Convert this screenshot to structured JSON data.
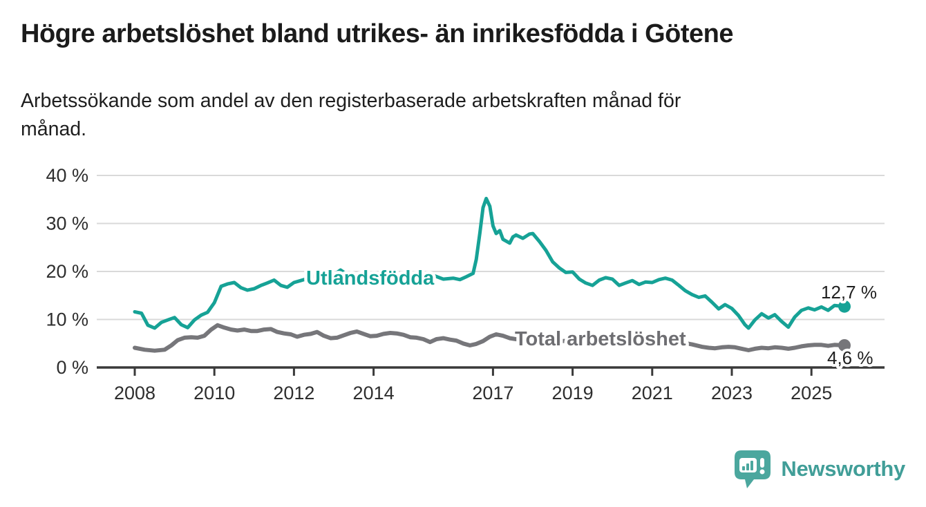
{
  "title": "Högre arbetslöshet bland utrikes- än inrikesfödda i Götene",
  "subtitle_line1": "Arbetssökande som andel av den registerbaserade arbetskraften månad för",
  "subtitle_line2": "månad.",
  "branding": {
    "logo_text": "Newsworthy",
    "logo_icon": "speech-bubble-bar-chart-icon",
    "logo_color": "#4ba79e"
  },
  "chart_data": {
    "type": "line",
    "title": "Högre arbetslöshet bland utrikes- än inrikesfödda i Götene",
    "subtitle": "Arbetssökande som andel av den registerbaserade arbetskraften månad för månad.",
    "unit": "%",
    "grid": true,
    "legend_position": "inline-labels",
    "x_axis": {
      "ticks": [
        2008,
        2010,
        2012,
        2014,
        2017,
        2019,
        2021,
        2023,
        2025
      ],
      "tick_labels": [
        "2008",
        "2010",
        "2012",
        "2014",
        "2017",
        "2019",
        "2021",
        "2023",
        "2025"
      ],
      "range": [
        2007.8,
        2026.3
      ]
    },
    "y_axis": {
      "ticks": [
        0,
        10,
        20,
        30,
        40
      ],
      "tick_labels": [
        "0 %",
        "10 %",
        "20 %",
        "30 %",
        "40 %"
      ],
      "range": [
        0,
        42
      ]
    },
    "series": [
      {
        "name": "Utlandsfödda",
        "color": "#16a296",
        "end_label": "12,7 %",
        "end_value": 12.7,
        "points": [
          [
            2008.0,
            11.6
          ],
          [
            2008.17,
            11.3
          ],
          [
            2008.33,
            8.8
          ],
          [
            2008.5,
            8.2
          ],
          [
            2008.67,
            9.4
          ],
          [
            2008.83,
            9.9
          ],
          [
            2009.0,
            10.4
          ],
          [
            2009.17,
            8.9
          ],
          [
            2009.33,
            8.3
          ],
          [
            2009.5,
            9.9
          ],
          [
            2009.67,
            10.9
          ],
          [
            2009.83,
            11.5
          ],
          [
            2010.0,
            13.5
          ],
          [
            2010.17,
            16.9
          ],
          [
            2010.33,
            17.4
          ],
          [
            2010.5,
            17.7
          ],
          [
            2010.67,
            16.6
          ],
          [
            2010.83,
            16.1
          ],
          [
            2011.0,
            16.4
          ],
          [
            2011.17,
            17.1
          ],
          [
            2011.33,
            17.6
          ],
          [
            2011.5,
            18.2
          ],
          [
            2011.67,
            17.1
          ],
          [
            2011.83,
            16.7
          ],
          [
            2012.0,
            17.7
          ],
          [
            2012.17,
            18.1
          ],
          [
            2012.33,
            18.5
          ],
          [
            2012.5,
            19.0
          ],
          [
            2012.67,
            19.3
          ],
          [
            2012.83,
            18.8
          ],
          [
            2013.0,
            19.3
          ],
          [
            2013.17,
            20.3
          ],
          [
            2013.33,
            19.4
          ],
          [
            2013.5,
            18.9
          ],
          [
            2013.67,
            18.7
          ],
          [
            2013.83,
            19.0
          ],
          [
            2014.0,
            19.2
          ],
          [
            2014.25,
            18.6
          ],
          [
            2014.5,
            19.1
          ],
          [
            2014.75,
            18.5
          ],
          [
            2015.0,
            19.5
          ],
          [
            2015.25,
            18.8
          ],
          [
            2015.5,
            19.2
          ],
          [
            2015.75,
            18.4
          ],
          [
            2016.0,
            18.6
          ],
          [
            2016.17,
            18.3
          ],
          [
            2016.33,
            18.9
          ],
          [
            2016.5,
            19.6
          ],
          [
            2016.58,
            22.5
          ],
          [
            2016.67,
            28.0
          ],
          [
            2016.75,
            33.3
          ],
          [
            2016.83,
            35.2
          ],
          [
            2016.92,
            33.6
          ],
          [
            2017.0,
            29.5
          ],
          [
            2017.08,
            27.9
          ],
          [
            2017.17,
            28.5
          ],
          [
            2017.25,
            26.7
          ],
          [
            2017.42,
            25.9
          ],
          [
            2017.5,
            27.2
          ],
          [
            2017.58,
            27.6
          ],
          [
            2017.75,
            26.9
          ],
          [
            2017.92,
            27.8
          ],
          [
            2018.0,
            27.9
          ],
          [
            2018.17,
            26.2
          ],
          [
            2018.33,
            24.4
          ],
          [
            2018.5,
            22.0
          ],
          [
            2018.67,
            20.7
          ],
          [
            2018.83,
            19.8
          ],
          [
            2019.0,
            19.9
          ],
          [
            2019.17,
            18.4
          ],
          [
            2019.33,
            17.6
          ],
          [
            2019.5,
            17.1
          ],
          [
            2019.67,
            18.2
          ],
          [
            2019.83,
            18.7
          ],
          [
            2020.0,
            18.4
          ],
          [
            2020.17,
            17.1
          ],
          [
            2020.33,
            17.6
          ],
          [
            2020.5,
            18.1
          ],
          [
            2020.67,
            17.3
          ],
          [
            2020.83,
            17.8
          ],
          [
            2021.0,
            17.7
          ],
          [
            2021.17,
            18.3
          ],
          [
            2021.33,
            18.6
          ],
          [
            2021.5,
            18.2
          ],
          [
            2021.67,
            17.1
          ],
          [
            2021.83,
            16.0
          ],
          [
            2022.0,
            15.2
          ],
          [
            2022.17,
            14.6
          ],
          [
            2022.33,
            14.9
          ],
          [
            2022.5,
            13.6
          ],
          [
            2022.67,
            12.2
          ],
          [
            2022.83,
            13.1
          ],
          [
            2023.0,
            12.3
          ],
          [
            2023.17,
            10.8
          ],
          [
            2023.33,
            8.9
          ],
          [
            2023.42,
            8.2
          ],
          [
            2023.58,
            9.9
          ],
          [
            2023.75,
            11.2
          ],
          [
            2023.92,
            10.3
          ],
          [
            2024.08,
            11.0
          ],
          [
            2024.25,
            9.6
          ],
          [
            2024.42,
            8.4
          ],
          [
            2024.58,
            10.5
          ],
          [
            2024.75,
            11.9
          ],
          [
            2024.92,
            12.4
          ],
          [
            2025.08,
            12.0
          ],
          [
            2025.25,
            12.6
          ],
          [
            2025.42,
            11.9
          ],
          [
            2025.58,
            12.9
          ],
          [
            2025.83,
            12.7
          ]
        ]
      },
      {
        "name": "Total arbetslöshet",
        "color": "#76767a",
        "end_label": "4,6 %",
        "end_value": 4.6,
        "points": [
          [
            2008.0,
            4.1
          ],
          [
            2008.25,
            3.7
          ],
          [
            2008.5,
            3.5
          ],
          [
            2008.75,
            3.7
          ],
          [
            2008.92,
            4.6
          ],
          [
            2009.08,
            5.7
          ],
          [
            2009.25,
            6.2
          ],
          [
            2009.42,
            6.3
          ],
          [
            2009.58,
            6.2
          ],
          [
            2009.75,
            6.6
          ],
          [
            2009.92,
            7.9
          ],
          [
            2010.08,
            8.8
          ],
          [
            2010.25,
            8.3
          ],
          [
            2010.42,
            7.9
          ],
          [
            2010.58,
            7.7
          ],
          [
            2010.75,
            7.9
          ],
          [
            2010.92,
            7.6
          ],
          [
            2011.08,
            7.6
          ],
          [
            2011.25,
            7.9
          ],
          [
            2011.42,
            8.0
          ],
          [
            2011.58,
            7.4
          ],
          [
            2011.75,
            7.1
          ],
          [
            2011.92,
            6.9
          ],
          [
            2012.08,
            6.4
          ],
          [
            2012.25,
            6.8
          ],
          [
            2012.42,
            7.0
          ],
          [
            2012.58,
            7.4
          ],
          [
            2012.75,
            6.6
          ],
          [
            2012.92,
            6.1
          ],
          [
            2013.08,
            6.2
          ],
          [
            2013.25,
            6.7
          ],
          [
            2013.42,
            7.2
          ],
          [
            2013.58,
            7.5
          ],
          [
            2013.75,
            7.0
          ],
          [
            2013.92,
            6.5
          ],
          [
            2014.08,
            6.6
          ],
          [
            2014.25,
            7.0
          ],
          [
            2014.42,
            7.2
          ],
          [
            2014.58,
            7.1
          ],
          [
            2014.75,
            6.8
          ],
          [
            2014.92,
            6.3
          ],
          [
            2015.08,
            6.2
          ],
          [
            2015.25,
            5.9
          ],
          [
            2015.42,
            5.3
          ],
          [
            2015.58,
            5.9
          ],
          [
            2015.75,
            6.1
          ],
          [
            2015.92,
            5.8
          ],
          [
            2016.08,
            5.6
          ],
          [
            2016.25,
            5.0
          ],
          [
            2016.42,
            4.6
          ],
          [
            2016.58,
            4.9
          ],
          [
            2016.75,
            5.5
          ],
          [
            2016.92,
            6.4
          ],
          [
            2017.08,
            6.9
          ],
          [
            2017.25,
            6.6
          ],
          [
            2017.42,
            6.1
          ],
          [
            2017.58,
            5.9
          ],
          [
            2017.75,
            5.7
          ],
          [
            2018.0,
            5.8
          ],
          [
            2018.25,
            5.5
          ],
          [
            2018.5,
            5.4
          ],
          [
            2018.75,
            5.5
          ],
          [
            2019.0,
            5.6
          ],
          [
            2019.25,
            5.4
          ],
          [
            2019.5,
            5.5
          ],
          [
            2019.75,
            5.7
          ],
          [
            2020.0,
            5.9
          ],
          [
            2020.25,
            6.8
          ],
          [
            2020.5,
            7.0
          ],
          [
            2020.75,
            6.7
          ],
          [
            2021.0,
            6.5
          ],
          [
            2021.25,
            6.1
          ],
          [
            2021.5,
            5.7
          ],
          [
            2021.75,
            5.2
          ],
          [
            2022.0,
            4.8
          ],
          [
            2022.25,
            4.3
          ],
          [
            2022.42,
            4.1
          ],
          [
            2022.58,
            4.0
          ],
          [
            2022.75,
            4.2
          ],
          [
            2022.92,
            4.3
          ],
          [
            2023.08,
            4.2
          ],
          [
            2023.25,
            3.9
          ],
          [
            2023.42,
            3.6
          ],
          [
            2023.58,
            3.9
          ],
          [
            2023.75,
            4.1
          ],
          [
            2023.92,
            4.0
          ],
          [
            2024.08,
            4.2
          ],
          [
            2024.25,
            4.1
          ],
          [
            2024.42,
            3.9
          ],
          [
            2024.58,
            4.1
          ],
          [
            2024.75,
            4.4
          ],
          [
            2024.92,
            4.6
          ],
          [
            2025.08,
            4.7
          ],
          [
            2025.25,
            4.7
          ],
          [
            2025.42,
            4.5
          ],
          [
            2025.58,
            4.7
          ],
          [
            2025.83,
            4.6
          ]
        ]
      }
    ],
    "colors": {
      "accent_teal": "#16a296",
      "line_gray": "#76767a",
      "grid": "#d9d9d9",
      "axis": "#3a3a3a"
    }
  }
}
